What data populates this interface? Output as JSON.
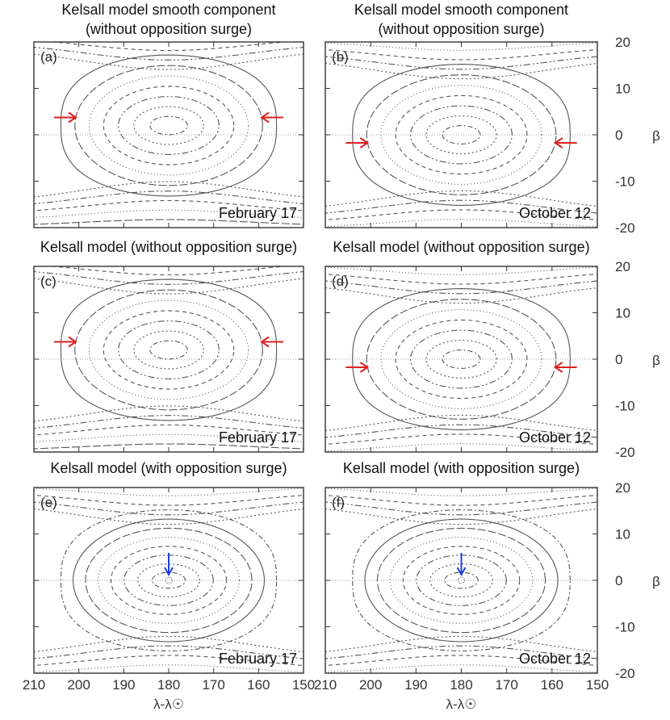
{
  "chart_data": {
    "type": "contour",
    "x_axis": {
      "label": "λ-λ☉",
      "range": [
        210,
        150
      ],
      "ticks": [
        210,
        200,
        190,
        180,
        170,
        160,
        150
      ]
    },
    "y_axis": {
      "label": "β",
      "range": [
        -20,
        20
      ],
      "ticks": [
        20,
        10,
        0,
        -10,
        -20
      ]
    },
    "panels": [
      {
        "id": "a",
        "label": "(a)",
        "title_lines": [
          "Kelsall model smooth component",
          "(without opposition surge)"
        ],
        "date": "February 17",
        "center": [
          180,
          2
        ],
        "arrows": "red"
      },
      {
        "id": "b",
        "label": "(b)",
        "title_lines": [
          "Kelsall model smooth component",
          "(without opposition surge)"
        ],
        "date": "October 12",
        "center": [
          180,
          0
        ],
        "arrows": "red"
      },
      {
        "id": "c",
        "label": "(c)",
        "title_lines": [
          "Kelsall model (without opposition surge)"
        ],
        "date": "February 17",
        "center": [
          180,
          2
        ],
        "arrows": "red"
      },
      {
        "id": "d",
        "label": "(d)",
        "title_lines": [
          "Kelsall model (without opposition surge)"
        ],
        "date": "October 12",
        "center": [
          180,
          0
        ],
        "arrows": "red"
      },
      {
        "id": "e",
        "label": "(e)",
        "title_lines": [
          "Kelsall model (with opposition surge)"
        ],
        "date": "February 17",
        "center": [
          180,
          0
        ],
        "arrows": "blue"
      },
      {
        "id": "f",
        "label": "(f)",
        "title_lines": [
          "Kelsall model (with opposition surge)"
        ],
        "date": "October 12",
        "center": [
          180,
          0
        ],
        "arrows": "blue"
      }
    ],
    "colors": {
      "frame": "#333333",
      "contour": "#555555",
      "red_arrow": "#e02020",
      "blue_arrow": "#2040e0"
    }
  }
}
